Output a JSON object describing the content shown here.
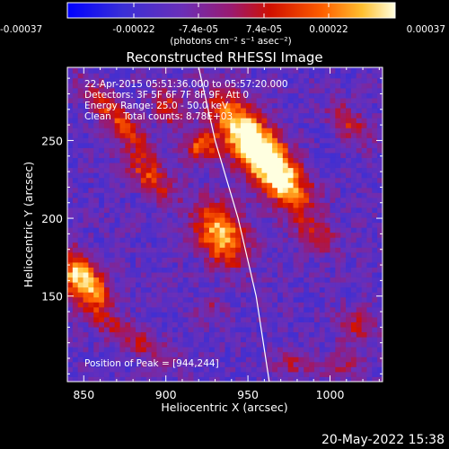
{
  "chart_data": {
    "type": "heatmap",
    "title": "Reconstructed RHESSI Image",
    "xlabel": "Heliocentric X (arcsec)",
    "ylabel": "Heliocentric Y (arcsec)",
    "xlim": [
      840,
      1032
    ],
    "ylim": [
      95,
      297
    ],
    "x_ticks": [
      850,
      900,
      950,
      1000
    ],
    "y_ticks": [
      150,
      200,
      250
    ],
    "colorbar": {
      "label": "(photons cm⁻² s⁻¹ asec⁻²)",
      "min": -0.00037,
      "max": 0.00037,
      "tick_labels": [
        "-0.00037",
        "-0.00022",
        "-7.4e-05",
        "7.4e-05",
        "0.00022",
        "0.00037"
      ],
      "colors": [
        "#0000ff",
        "#5a2fc2",
        "#7a2fb0",
        "#cc1010",
        "#ff5a00",
        "#ffd040",
        "#ffffe0"
      ]
    },
    "info_lines": [
      "22-Apr-2015 05:51:36.000 to 05:57:20.000",
      "Detectors: 3F 5F 6F 7F 8F 9F, Att 0",
      "Energy Range: 25.0 - 50.0 keV",
      "Clean    Total counts: 8.78E+03"
    ],
    "peak_label": "Position of Peak = [944,244]",
    "peak": [
      944,
      244
    ],
    "limb_line": [
      [
        920,
        297
      ],
      [
        930,
        250
      ],
      [
        944,
        200
      ],
      [
        955,
        150
      ],
      [
        963,
        95
      ]
    ],
    "sources": [
      {
        "x": 948,
        "y": 250,
        "amp": 1.0,
        "sx": 22,
        "sy": 10,
        "angle": -55
      },
      {
        "x": 968,
        "y": 226,
        "amp": 0.8,
        "sx": 20,
        "sy": 9,
        "angle": -55
      },
      {
        "x": 932,
        "y": 188,
        "amp": 0.85,
        "sx": 15,
        "sy": 10,
        "angle": -60
      },
      {
        "x": 920,
        "y": 245,
        "amp": 0.6,
        "sx": 7,
        "sy": 7,
        "angle": 0
      },
      {
        "x": 848,
        "y": 158,
        "amp": 0.95,
        "sx": 16,
        "sy": 8,
        "angle": -55
      },
      {
        "x": 870,
        "y": 262,
        "amp": 0.55,
        "sx": 22,
        "sy": 6,
        "angle": -50
      },
      {
        "x": 888,
        "y": 225,
        "amp": 0.5,
        "sx": 14,
        "sy": 6,
        "angle": -45
      },
      {
        "x": 900,
        "y": 270,
        "amp": 0.45,
        "sx": 10,
        "sy": 6,
        "angle": -60
      },
      {
        "x": 990,
        "y": 188,
        "amp": 0.35,
        "sx": 10,
        "sy": 7,
        "angle": -40
      },
      {
        "x": 1010,
        "y": 260,
        "amp": 0.4,
        "sx": 12,
        "sy": 6,
        "angle": -50
      },
      {
        "x": 880,
        "y": 120,
        "amp": 0.35,
        "sx": 18,
        "sy": 6,
        "angle": -30
      },
      {
        "x": 1015,
        "y": 130,
        "amp": 0.35,
        "sx": 10,
        "sy": 8,
        "angle": 0
      },
      {
        "x": 1005,
        "y": 105,
        "amp": 0.3,
        "sx": 10,
        "sy": 6,
        "angle": 20
      },
      {
        "x": 975,
        "y": 105,
        "amp": 0.3,
        "sx": 8,
        "sy": 6,
        "angle": 0
      },
      {
        "x": 925,
        "y": 140,
        "amp": 0.25,
        "sx": 6,
        "sy": 6,
        "angle": 0
      }
    ]
  },
  "footer": {
    "timestamp": "20-May-2022 15:38"
  }
}
